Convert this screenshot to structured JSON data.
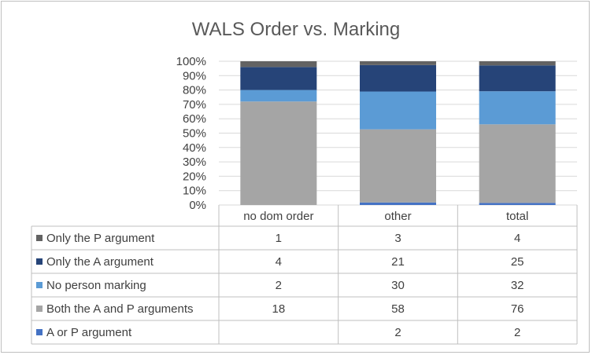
{
  "chart_data": {
    "type": "bar",
    "stacked": "percent",
    "title": "WALS Order vs. Marking",
    "categories": [
      "no dom order",
      "other",
      "total"
    ],
    "y_ticks": [
      "0%",
      "10%",
      "20%",
      "30%",
      "40%",
      "50%",
      "60%",
      "70%",
      "80%",
      "90%",
      "100%"
    ],
    "ylim": [
      0,
      100
    ],
    "grid": true,
    "legend": "data-table-below",
    "series": [
      {
        "name": "A or P argument",
        "color": "#4472c4",
        "values": [
          null,
          2,
          2
        ],
        "display": [
          "",
          "2",
          "2"
        ]
      },
      {
        "name": "Both the A and P arguments",
        "color": "#a5a5a5",
        "values": [
          18,
          58,
          76
        ],
        "display": [
          "18",
          "58",
          "76"
        ]
      },
      {
        "name": "No person marking",
        "color": "#5b9bd5",
        "values": [
          2,
          30,
          32
        ],
        "display": [
          "2",
          "30",
          "32"
        ]
      },
      {
        "name": "Only the A argument",
        "color": "#264478",
        "values": [
          4,
          21,
          25
        ],
        "display": [
          "4",
          "21",
          "25"
        ]
      },
      {
        "name": "Only the P argument",
        "color": "#636363",
        "values": [
          1,
          3,
          4
        ],
        "display": [
          "1",
          "3",
          "4"
        ]
      }
    ]
  }
}
